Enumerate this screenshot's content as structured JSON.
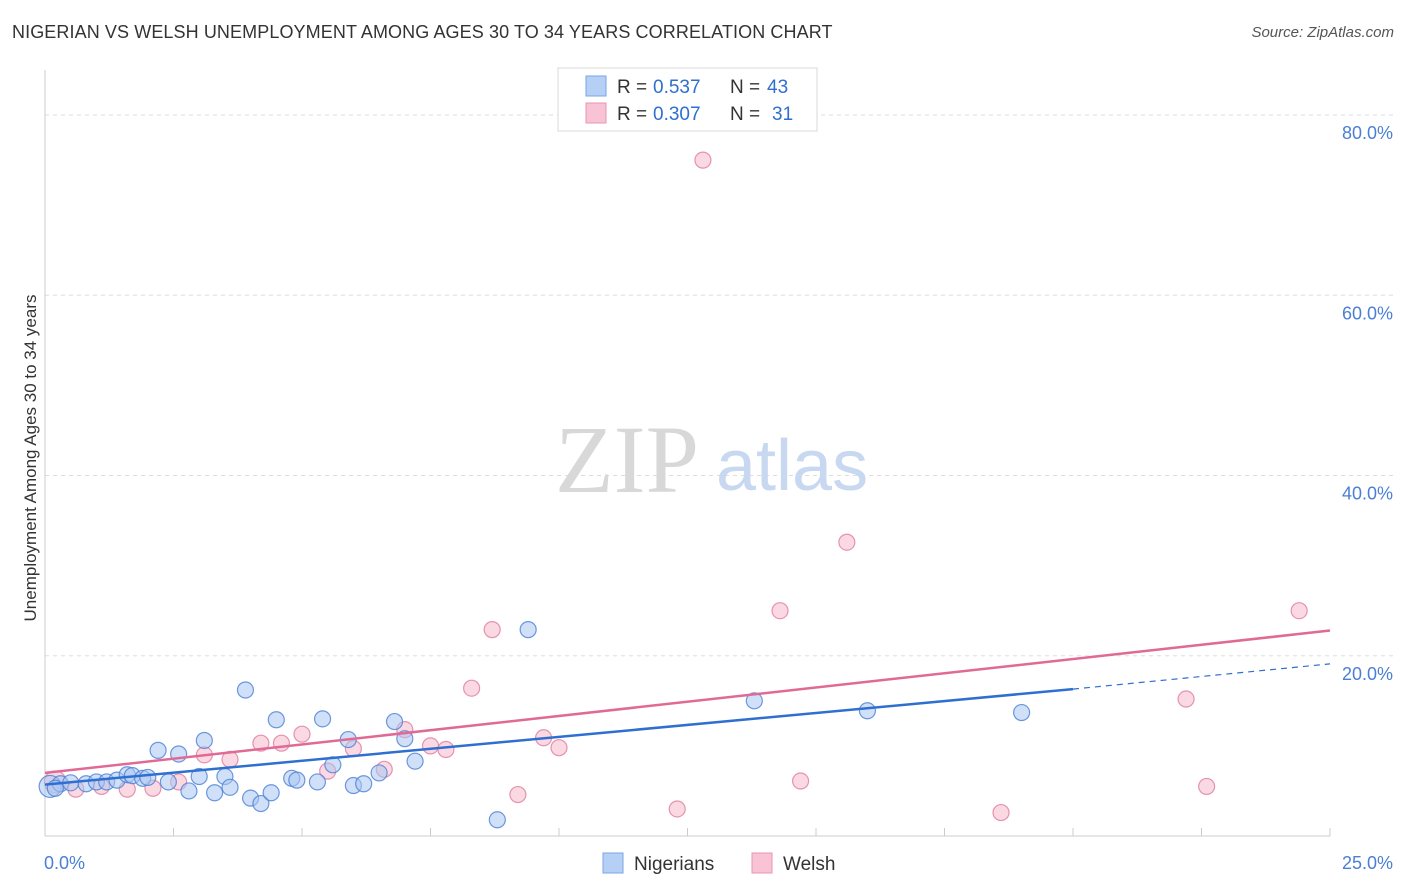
{
  "title": "NIGERIAN VS WELSH UNEMPLOYMENT AMONG AGES 30 TO 34 YEARS CORRELATION CHART",
  "source": "Source: ZipAtlas.com",
  "watermark": {
    "zip": "ZIP",
    "atlas": "atlas"
  },
  "stats": [
    {
      "r_label": "R =",
      "r_value": "0.537",
      "n_label": "N =",
      "n_value": "43",
      "color": "#4a7fd4"
    },
    {
      "r_label": "R =",
      "r_value": "0.307",
      "n_label": "N =",
      "n_value": "31",
      "color": "#e07aa0"
    }
  ],
  "chart_data": {
    "type": "scatter",
    "title": "NIGERIAN VS WELSH UNEMPLOYMENT AMONG AGES 30 TO 34 YEARS CORRELATION CHART",
    "xlabel": "",
    "ylabel": "Unemployment Among Ages 30 to 34 years",
    "xlim": [
      0,
      25
    ],
    "ylim": [
      0,
      85
    ],
    "x_tick_labels": [
      "0.0%",
      "25.0%"
    ],
    "y_ticks": [
      20,
      40,
      60,
      80
    ],
    "y_tick_labels": [
      "20.0%",
      "40.0%",
      "60.0%",
      "80.0%"
    ],
    "grid": true,
    "legend_position": "bottom-center",
    "series": [
      {
        "name": "Nigerians",
        "color": "#4a7fd4",
        "fill": "#a9c7f2",
        "trend": {
          "x0": 0,
          "y0": 5.7,
          "x1": 20,
          "y1": 16.3,
          "dashed_to_x": 25,
          "dashed_to_y": 19.1
        },
        "points": [
          [
            0.1,
            5.5
          ],
          [
            0.3,
            5.8
          ],
          [
            0.5,
            5.9
          ],
          [
            0.8,
            5.8
          ],
          [
            1.0,
            6.0
          ],
          [
            1.2,
            6.0
          ],
          [
            1.4,
            6.2
          ],
          [
            1.6,
            6.8
          ],
          [
            1.7,
            6.7
          ],
          [
            1.9,
            6.4
          ],
          [
            2.0,
            6.5
          ],
          [
            2.2,
            9.5
          ],
          [
            2.4,
            6.0
          ],
          [
            2.6,
            9.1
          ],
          [
            2.8,
            5.0
          ],
          [
            3.0,
            6.6
          ],
          [
            3.1,
            10.6
          ],
          [
            3.3,
            4.8
          ],
          [
            3.5,
            6.6
          ],
          [
            3.6,
            5.4
          ],
          [
            3.9,
            16.2
          ],
          [
            4.0,
            4.2
          ],
          [
            4.2,
            3.6
          ],
          [
            4.4,
            4.8
          ],
          [
            4.5,
            12.9
          ],
          [
            4.8,
            6.4
          ],
          [
            4.9,
            6.2
          ],
          [
            5.3,
            6.0
          ],
          [
            5.4,
            13.0
          ],
          [
            5.6,
            7.9
          ],
          [
            5.9,
            10.7
          ],
          [
            6.0,
            5.6
          ],
          [
            6.2,
            5.8
          ],
          [
            6.5,
            7.0
          ],
          [
            6.8,
            12.7
          ],
          [
            7.0,
            10.8
          ],
          [
            7.2,
            8.3
          ],
          [
            8.8,
            1.8
          ],
          [
            9.4,
            22.9
          ],
          [
            13.8,
            15.0
          ],
          [
            16.0,
            13.9
          ],
          [
            19.0,
            13.7
          ],
          [
            0.2,
            5.3
          ]
        ]
      },
      {
        "name": "Welsh",
        "color": "#e07aa0",
        "fill": "#f6b9cc",
        "trend": {
          "x0": 0,
          "y0": 7.0,
          "x1": 25,
          "y1": 22.8
        },
        "points": [
          [
            0.2,
            6.0
          ],
          [
            0.6,
            5.2
          ],
          [
            1.1,
            5.5
          ],
          [
            1.6,
            5.2
          ],
          [
            2.1,
            5.3
          ],
          [
            2.6,
            6.0
          ],
          [
            3.1,
            9.0
          ],
          [
            3.6,
            8.5
          ],
          [
            4.2,
            10.3
          ],
          [
            4.6,
            10.3
          ],
          [
            5.0,
            11.3
          ],
          [
            5.5,
            7.2
          ],
          [
            6.0,
            9.7
          ],
          [
            6.6,
            7.4
          ],
          [
            7.0,
            11.8
          ],
          [
            7.5,
            10.0
          ],
          [
            7.8,
            9.6
          ],
          [
            8.3,
            16.4
          ],
          [
            8.7,
            22.9
          ],
          [
            9.2,
            4.6
          ],
          [
            9.7,
            10.9
          ],
          [
            10.0,
            9.8
          ],
          [
            12.3,
            3.0
          ],
          [
            12.8,
            75.0
          ],
          [
            14.3,
            25.0
          ],
          [
            14.7,
            6.1
          ],
          [
            15.6,
            32.6
          ],
          [
            18.6,
            2.6
          ],
          [
            22.2,
            15.2
          ],
          [
            22.6,
            5.5
          ],
          [
            24.4,
            25.0
          ]
        ]
      }
    ]
  }
}
